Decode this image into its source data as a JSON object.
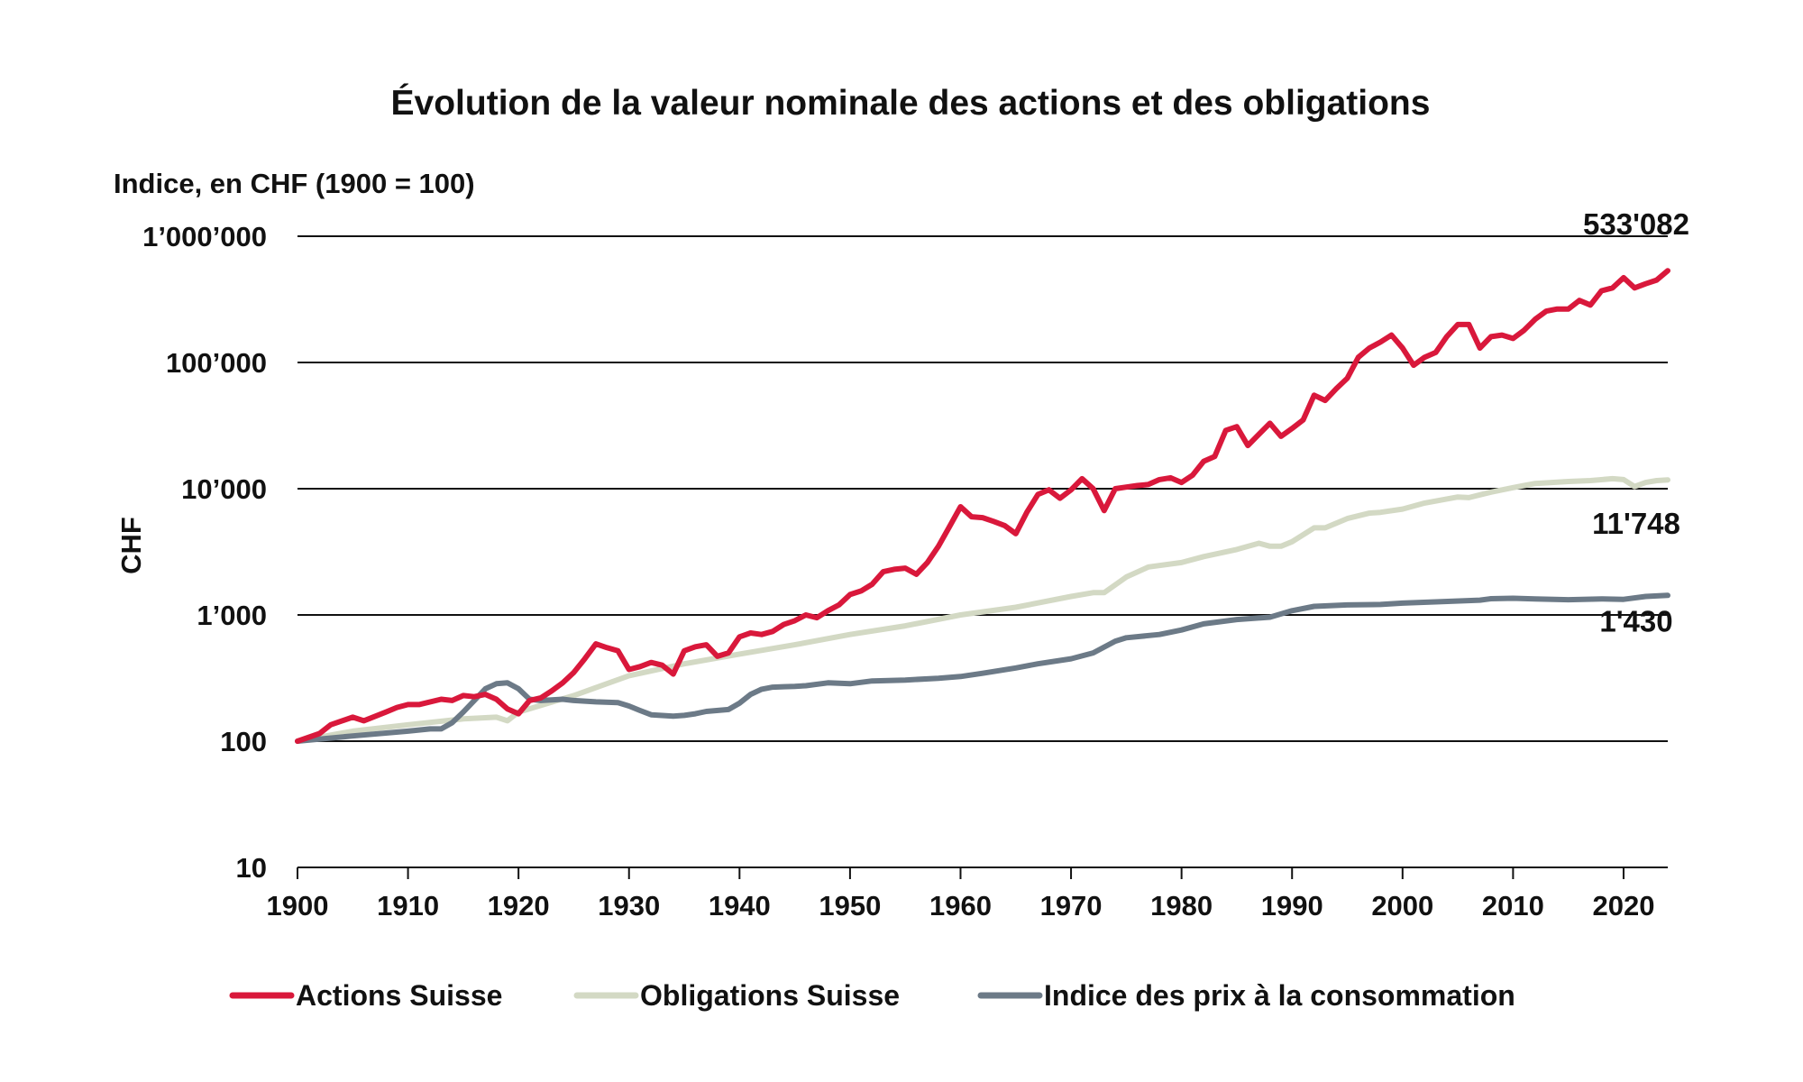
{
  "chart_data": {
    "type": "line",
    "title": "Évolution de la valeur nominale des actions et des obligations",
    "subtitle": "Indice, en CHF (1900 = 100)",
    "ylabel": "CHF",
    "xlabel": "",
    "yscale": "log",
    "ylim": [
      10,
      1000000
    ],
    "xlim": [
      1900,
      2024
    ],
    "grid": "horizontal",
    "legend_position": "bottom",
    "y_ticks": [
      {
        "value": 1000000,
        "label": "1’000’000"
      },
      {
        "value": 100000,
        "label": "100’000"
      },
      {
        "value": 10000,
        "label": "10’000"
      },
      {
        "value": 1000,
        "label": "1’000"
      },
      {
        "value": 100,
        "label": "100"
      },
      {
        "value": 10,
        "label": "10"
      }
    ],
    "x_ticks": [
      {
        "value": 1900,
        "label": "1900"
      },
      {
        "value": 1910,
        "label": "1910"
      },
      {
        "value": 1920,
        "label": "1920"
      },
      {
        "value": 1930,
        "label": "1930"
      },
      {
        "value": 1940,
        "label": "1940"
      },
      {
        "value": 1950,
        "label": "1950"
      },
      {
        "value": 1960,
        "label": "1960"
      },
      {
        "value": 1970,
        "label": "1970"
      },
      {
        "value": 1980,
        "label": "1980"
      },
      {
        "value": 1990,
        "label": "1990"
      },
      {
        "value": 2000,
        "label": "2000"
      },
      {
        "value": 2010,
        "label": "2010"
      },
      {
        "value": 2020,
        "label": "2020"
      }
    ],
    "series": [
      {
        "name": "Actions Suisse",
        "color": "#d9183b",
        "end_label": "533'082",
        "points": [
          [
            1900,
            100
          ],
          [
            1902,
            115
          ],
          [
            1903,
            135
          ],
          [
            1905,
            155
          ],
          [
            1906,
            145
          ],
          [
            1908,
            170
          ],
          [
            1909,
            185
          ],
          [
            1910,
            195
          ],
          [
            1911,
            195
          ],
          [
            1913,
            215
          ],
          [
            1914,
            210
          ],
          [
            1915,
            230
          ],
          [
            1916,
            225
          ],
          [
            1917,
            235
          ],
          [
            1918,
            215
          ],
          [
            1919,
            180
          ],
          [
            1920,
            165
          ],
          [
            1921,
            210
          ],
          [
            1922,
            220
          ],
          [
            1923,
            250
          ],
          [
            1924,
            290
          ],
          [
            1925,
            350
          ],
          [
            1926,
            450
          ],
          [
            1927,
            590
          ],
          [
            1928,
            550
          ],
          [
            1929,
            520
          ],
          [
            1930,
            370
          ],
          [
            1931,
            390
          ],
          [
            1932,
            420
          ],
          [
            1933,
            400
          ],
          [
            1934,
            340
          ],
          [
            1935,
            520
          ],
          [
            1936,
            560
          ],
          [
            1937,
            580
          ],
          [
            1938,
            470
          ],
          [
            1939,
            500
          ],
          [
            1940,
            670
          ],
          [
            1941,
            720
          ],
          [
            1942,
            700
          ],
          [
            1943,
            740
          ],
          [
            1944,
            840
          ],
          [
            1945,
            900
          ],
          [
            1946,
            1000
          ],
          [
            1947,
            950
          ],
          [
            1948,
            1080
          ],
          [
            1949,
            1200
          ],
          [
            1950,
            1450
          ],
          [
            1951,
            1550
          ],
          [
            1952,
            1750
          ],
          [
            1953,
            2200
          ],
          [
            1954,
            2300
          ],
          [
            1955,
            2350
          ],
          [
            1956,
            2100
          ],
          [
            1957,
            2600
          ],
          [
            1958,
            3500
          ],
          [
            1959,
            5000
          ],
          [
            1960,
            7200
          ],
          [
            1961,
            6000
          ],
          [
            1962,
            5900
          ],
          [
            1963,
            5500
          ],
          [
            1964,
            5100
          ],
          [
            1965,
            4400
          ],
          [
            1966,
            6500
          ],
          [
            1967,
            9000
          ],
          [
            1968,
            9800
          ],
          [
            1969,
            8400
          ],
          [
            1970,
            9800
          ],
          [
            1971,
            12000
          ],
          [
            1972,
            10000
          ],
          [
            1973,
            6700
          ],
          [
            1974,
            10000
          ],
          [
            1975,
            10300
          ],
          [
            1976,
            10600
          ],
          [
            1977,
            10800
          ],
          [
            1978,
            11800
          ],
          [
            1979,
            12200
          ],
          [
            1980,
            11200
          ],
          [
            1981,
            12800
          ],
          [
            1982,
            16500
          ],
          [
            1983,
            18000
          ],
          [
            1984,
            29000
          ],
          [
            1985,
            31000
          ],
          [
            1986,
            22000
          ],
          [
            1987,
            27000
          ],
          [
            1988,
            33000
          ],
          [
            1989,
            26000
          ],
          [
            1990,
            30000
          ],
          [
            1991,
            35000
          ],
          [
            1992,
            55000
          ],
          [
            1993,
            50000
          ],
          [
            1994,
            62000
          ],
          [
            1995,
            75000
          ],
          [
            1996,
            110000
          ],
          [
            1997,
            130000
          ],
          [
            1998,
            145000
          ],
          [
            1999,
            165000
          ],
          [
            2000,
            130000
          ],
          [
            2001,
            95000
          ],
          [
            2002,
            110000
          ],
          [
            2003,
            120000
          ],
          [
            2004,
            160000
          ],
          [
            2005,
            200000
          ],
          [
            2006,
            200000
          ],
          [
            2007,
            130000
          ],
          [
            2008,
            160000
          ],
          [
            2009,
            165000
          ],
          [
            2010,
            155000
          ],
          [
            2011,
            180000
          ],
          [
            2012,
            220000
          ],
          [
            2013,
            255000
          ],
          [
            2014,
            265000
          ],
          [
            2015,
            265000
          ],
          [
            2016,
            310000
          ],
          [
            2017,
            285000
          ],
          [
            2018,
            370000
          ],
          [
            2019,
            390000
          ],
          [
            2020,
            470000
          ],
          [
            2021,
            390000
          ],
          [
            2022,
            420000
          ],
          [
            2023,
            450000
          ],
          [
            2024,
            533082
          ]
        ]
      },
      {
        "name": "Obligations Suisse",
        "color": "#d3d9c4",
        "end_label": "11'748",
        "points": [
          [
            1900,
            100
          ],
          [
            1905,
            120
          ],
          [
            1910,
            135
          ],
          [
            1915,
            150
          ],
          [
            1918,
            155
          ],
          [
            1919,
            145
          ],
          [
            1920,
            170
          ],
          [
            1925,
            230
          ],
          [
            1930,
            330
          ],
          [
            1935,
            410
          ],
          [
            1940,
            490
          ],
          [
            1945,
            580
          ],
          [
            1950,
            700
          ],
          [
            1955,
            820
          ],
          [
            1960,
            1000
          ],
          [
            1965,
            1150
          ],
          [
            1970,
            1400
          ],
          [
            1972,
            1500
          ],
          [
            1973,
            1500
          ],
          [
            1975,
            2000
          ],
          [
            1977,
            2400
          ],
          [
            1980,
            2600
          ],
          [
            1982,
            2900
          ],
          [
            1985,
            3300
          ],
          [
            1987,
            3700
          ],
          [
            1988,
            3500
          ],
          [
            1989,
            3500
          ],
          [
            1990,
            3800
          ],
          [
            1992,
            4900
          ],
          [
            1993,
            4900
          ],
          [
            1995,
            5800
          ],
          [
            1997,
            6400
          ],
          [
            1998,
            6500
          ],
          [
            2000,
            6900
          ],
          [
            2002,
            7700
          ],
          [
            2005,
            8600
          ],
          [
            2006,
            8500
          ],
          [
            2008,
            9400
          ],
          [
            2010,
            10200
          ],
          [
            2011,
            10600
          ],
          [
            2012,
            11000
          ],
          [
            2015,
            11400
          ],
          [
            2017,
            11600
          ],
          [
            2019,
            12000
          ],
          [
            2020,
            11800
          ],
          [
            2021,
            10400
          ],
          [
            2022,
            11200
          ],
          [
            2023,
            11600
          ],
          [
            2024,
            11748
          ]
        ]
      },
      {
        "name": "Indice des prix à la consommation",
        "color": "#6c7a87",
        "end_label": "1'430",
        "points": [
          [
            1900,
            100
          ],
          [
            1905,
            110
          ],
          [
            1910,
            120
          ],
          [
            1912,
            125
          ],
          [
            1913,
            125
          ],
          [
            1914,
            140
          ],
          [
            1915,
            170
          ],
          [
            1916,
            210
          ],
          [
            1917,
            260
          ],
          [
            1918,
            285
          ],
          [
            1919,
            290
          ],
          [
            1920,
            260
          ],
          [
            1921,
            215
          ],
          [
            1922,
            210
          ],
          [
            1923,
            212
          ],
          [
            1924,
            215
          ],
          [
            1925,
            210
          ],
          [
            1927,
            205
          ],
          [
            1929,
            202
          ],
          [
            1930,
            190
          ],
          [
            1931,
            175
          ],
          [
            1932,
            162
          ],
          [
            1934,
            158
          ],
          [
            1935,
            160
          ],
          [
            1936,
            165
          ],
          [
            1937,
            172
          ],
          [
            1939,
            178
          ],
          [
            1940,
            200
          ],
          [
            1941,
            235
          ],
          [
            1942,
            258
          ],
          [
            1943,
            268
          ],
          [
            1944,
            270
          ],
          [
            1945,
            272
          ],
          [
            1946,
            275
          ],
          [
            1948,
            290
          ],
          [
            1950,
            285
          ],
          [
            1952,
            300
          ],
          [
            1955,
            305
          ],
          [
            1958,
            315
          ],
          [
            1960,
            325
          ],
          [
            1962,
            345
          ],
          [
            1965,
            380
          ],
          [
            1967,
            410
          ],
          [
            1970,
            450
          ],
          [
            1972,
            500
          ],
          [
            1974,
            620
          ],
          [
            1975,
            660
          ],
          [
            1978,
            700
          ],
          [
            1980,
            760
          ],
          [
            1982,
            850
          ],
          [
            1985,
            920
          ],
          [
            1988,
            960
          ],
          [
            1990,
            1080
          ],
          [
            1992,
            1170
          ],
          [
            1995,
            1200
          ],
          [
            1998,
            1210
          ],
          [
            2000,
            1240
          ],
          [
            2003,
            1270
          ],
          [
            2007,
            1310
          ],
          [
            2008,
            1345
          ],
          [
            2010,
            1355
          ],
          [
            2012,
            1340
          ],
          [
            2015,
            1320
          ],
          [
            2018,
            1340
          ],
          [
            2020,
            1330
          ],
          [
            2022,
            1400
          ],
          [
            2024,
            1430
          ]
        ]
      }
    ]
  }
}
